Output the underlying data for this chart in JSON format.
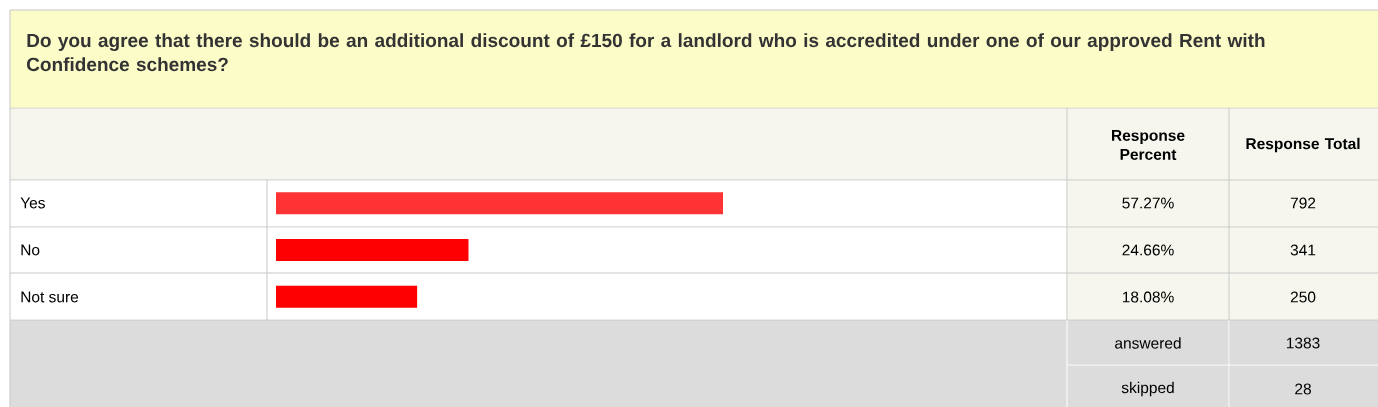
{
  "chart_data": {
    "type": "bar",
    "orientation": "horizontal",
    "title": "Do you agree that there should be an additional discount of £150 for a landlord who is accredited under one of our approved Rent with Confidence schemes?",
    "categories": [
      "Yes",
      "No",
      "Not sure"
    ],
    "values": [
      57.27,
      24.66,
      18.08
    ],
    "value_labels": [
      "57.27%",
      "24.66%",
      "18.08%"
    ],
    "colors": [
      "#ff3333",
      "#ff0000",
      "#ff0000"
    ],
    "tick_labels": false,
    "annotations": [
      "Response Percent",
      "Response Total",
      "792",
      "341",
      "250",
      "answered",
      "1383",
      "skipped",
      "28"
    ]
  }
}
